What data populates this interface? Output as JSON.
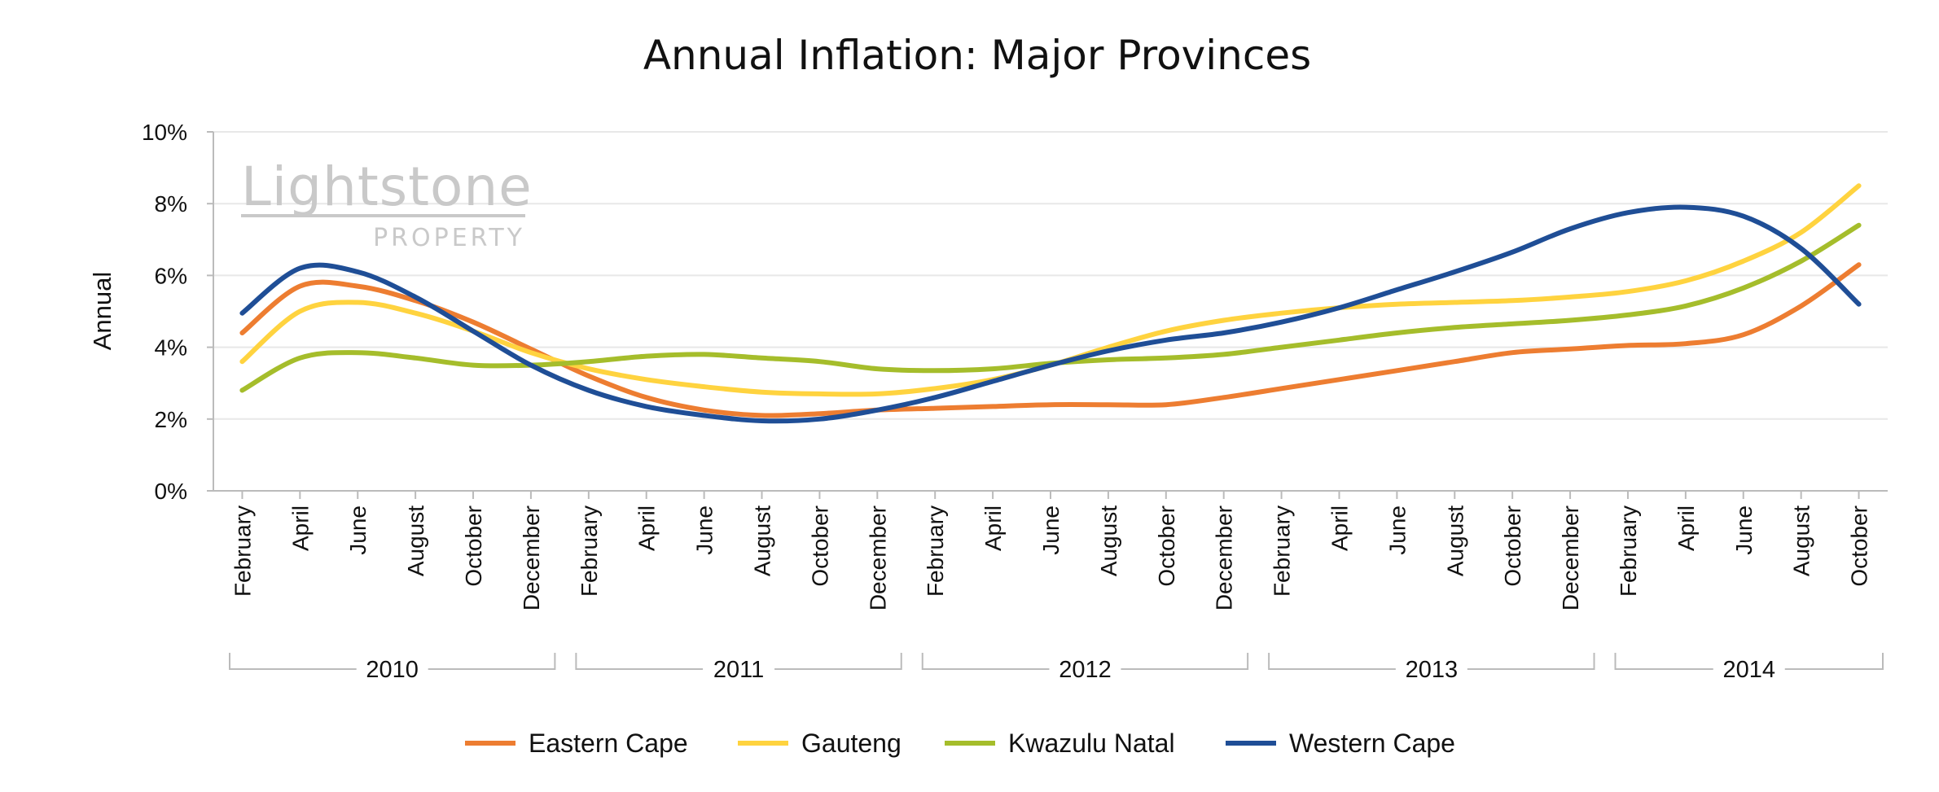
{
  "chart_data": {
    "type": "line",
    "title": "Annual Inflation: Major Provinces",
    "ylabel": "Annual",
    "xlabel": "",
    "ylim": [
      0,
      10
    ],
    "yticks": [
      "0%",
      "2%",
      "4%",
      "6%",
      "8%",
      "10%"
    ],
    "grid": true,
    "smooth": true,
    "legend_position": "bottom",
    "watermark": {
      "main": "Lightstone",
      "sub": "PROPERTY"
    },
    "categories": [
      "February",
      "April",
      "June",
      "August",
      "October",
      "December",
      "February",
      "April",
      "June",
      "August",
      "October",
      "December",
      "February",
      "April",
      "June",
      "August",
      "October",
      "December",
      "February",
      "April",
      "June",
      "August",
      "October",
      "December",
      "February",
      "April",
      "June",
      "August",
      "October"
    ],
    "year_groups": [
      {
        "label": "2010",
        "count": 6
      },
      {
        "label": "2011",
        "count": 6
      },
      {
        "label": "2012",
        "count": 6
      },
      {
        "label": "2013",
        "count": 6
      },
      {
        "label": "2014",
        "count": 5
      }
    ],
    "series": [
      {
        "name": "Eastern Cape",
        "color": "#ed7d31",
        "values": [
          4.4,
          5.7,
          5.7,
          5.3,
          4.7,
          3.95,
          3.2,
          2.6,
          2.25,
          2.1,
          2.15,
          2.25,
          2.3,
          2.35,
          2.4,
          2.4,
          2.4,
          2.6,
          2.85,
          3.1,
          3.35,
          3.6,
          3.85,
          3.95,
          4.05,
          4.1,
          4.35,
          5.15,
          6.3
        ]
      },
      {
        "name": "Gauteng",
        "color": "#ffd33f",
        "values": [
          3.6,
          5.0,
          5.25,
          4.95,
          4.45,
          3.85,
          3.4,
          3.1,
          2.9,
          2.75,
          2.7,
          2.7,
          2.85,
          3.1,
          3.5,
          4.0,
          4.45,
          4.75,
          4.95,
          5.1,
          5.2,
          5.25,
          5.3,
          5.4,
          5.55,
          5.85,
          6.4,
          7.2,
          8.5
        ]
      },
      {
        "name": "Kwazulu Natal",
        "color": "#a5bd2b",
        "values": [
          2.8,
          3.7,
          3.85,
          3.7,
          3.5,
          3.5,
          3.6,
          3.75,
          3.8,
          3.7,
          3.6,
          3.4,
          3.35,
          3.4,
          3.55,
          3.65,
          3.7,
          3.8,
          4.0,
          4.2,
          4.4,
          4.55,
          4.65,
          4.75,
          4.9,
          5.15,
          5.65,
          6.4,
          7.4
        ]
      },
      {
        "name": "Western Cape",
        "color": "#1f4e96",
        "values": [
          4.95,
          6.2,
          6.1,
          5.4,
          4.45,
          3.5,
          2.8,
          2.35,
          2.1,
          1.95,
          2.0,
          2.25,
          2.6,
          3.05,
          3.5,
          3.9,
          4.2,
          4.4,
          4.7,
          5.1,
          5.6,
          6.1,
          6.65,
          7.3,
          7.75,
          7.9,
          7.65,
          6.75,
          5.2
        ]
      }
    ]
  }
}
